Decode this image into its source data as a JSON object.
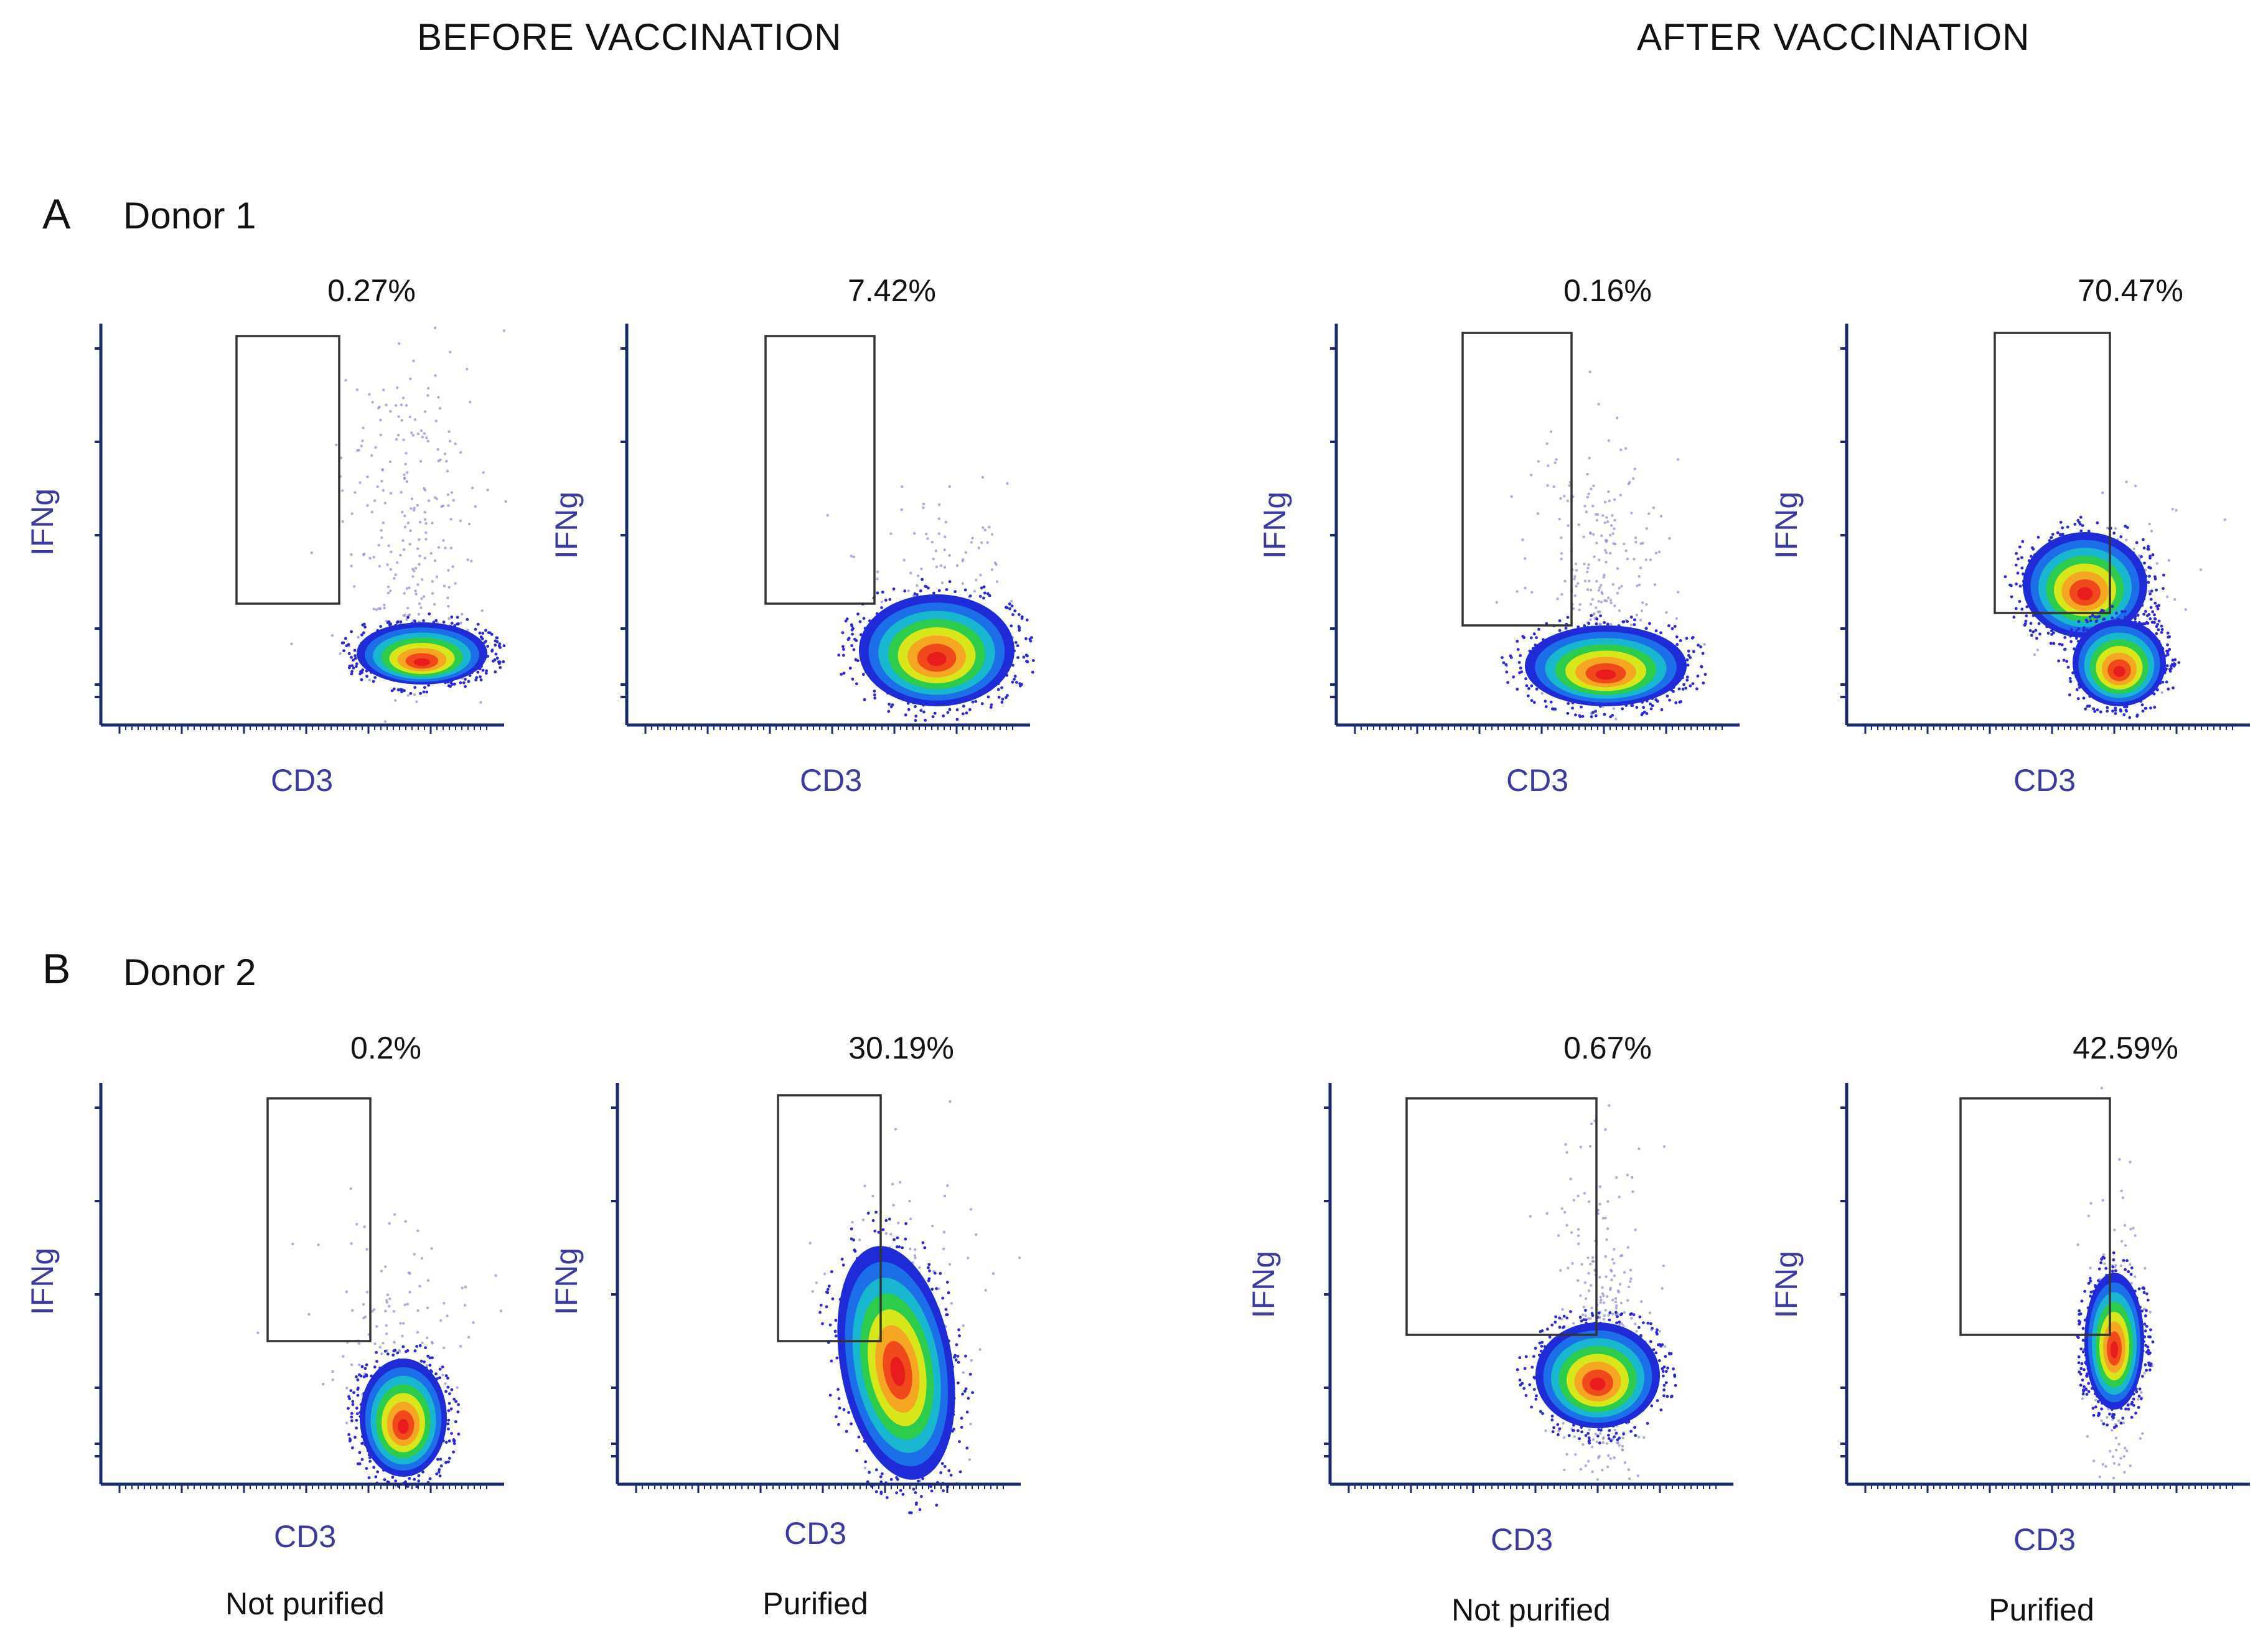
{
  "headers": {
    "before": "BEFORE VACCINATION",
    "after": "AFTER VACCINATION"
  },
  "rows": [
    {
      "letter": "A",
      "donor": "Donor 1"
    },
    {
      "letter": "B",
      "donor": "Donor 2"
    }
  ],
  "conditions": {
    "not_purified": "Not purified",
    "purified": "Purified"
  },
  "chart_data": [
    {
      "type": "scatter",
      "panel": "A",
      "donor": "Donor 1",
      "phase": "BEFORE VACCINATION",
      "condition": "Not purified",
      "xlabel": "CD3",
      "ylabel": "IFNg",
      "gate_percent": "0.27%",
      "gate_value": 0.27
    },
    {
      "type": "scatter",
      "panel": "A",
      "donor": "Donor 1",
      "phase": "BEFORE VACCINATION",
      "condition": "Purified",
      "xlabel": "CD3",
      "ylabel": "IFNg",
      "gate_percent": "7.42%",
      "gate_value": 7.42
    },
    {
      "type": "scatter",
      "panel": "A",
      "donor": "Donor 1",
      "phase": "AFTER VACCINATION",
      "condition": "Not purified",
      "xlabel": "CD3",
      "ylabel": "IFNg",
      "gate_percent": "0.16%",
      "gate_value": 0.16
    },
    {
      "type": "scatter",
      "panel": "A",
      "donor": "Donor 1",
      "phase": "AFTER VACCINATION",
      "condition": "Purified",
      "xlabel": "CD3",
      "ylabel": "IFNg",
      "gate_percent": "70.47%",
      "gate_value": 70.47
    },
    {
      "type": "scatter",
      "panel": "B",
      "donor": "Donor 2",
      "phase": "BEFORE VACCINATION",
      "condition": "Not purified",
      "xlabel": "CD3",
      "ylabel": "IFNg",
      "gate_percent": "0.2%",
      "gate_value": 0.2
    },
    {
      "type": "scatter",
      "panel": "B",
      "donor": "Donor 2",
      "phase": "BEFORE VACCINATION",
      "condition": "Purified",
      "xlabel": "CD3",
      "ylabel": "IFNg",
      "gate_percent": "30.19%",
      "gate_value": 30.19
    },
    {
      "type": "scatter",
      "panel": "B",
      "donor": "Donor 2",
      "phase": "AFTER VACCINATION",
      "condition": "Not purified",
      "xlabel": "CD3",
      "ylabel": "IFNg",
      "gate_percent": "0.67%",
      "gate_value": 0.67
    },
    {
      "type": "scatter",
      "panel": "B",
      "donor": "Donor 2",
      "phase": "AFTER VACCINATION",
      "condition": "Purified",
      "xlabel": "CD3",
      "ylabel": "IFNg",
      "gate_percent": "42.59%",
      "gate_value": 42.59
    }
  ]
}
